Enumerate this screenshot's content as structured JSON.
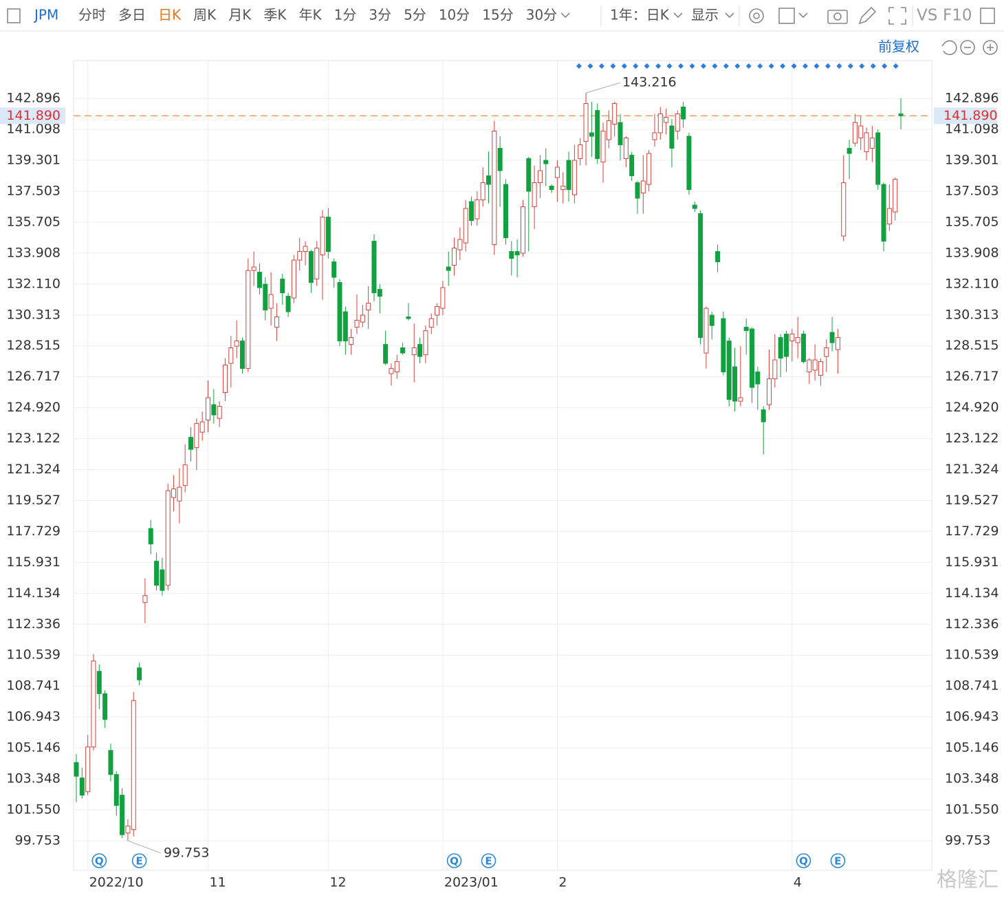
{
  "toolbar": {
    "symbol": "JPM",
    "periods": [
      "分时",
      "多日",
      "日K",
      "周K",
      "月K",
      "季K",
      "年K",
      "1分",
      "3分",
      "5分",
      "10分",
      "15分",
      "30分"
    ],
    "active": "日K",
    "range": "1年：日K",
    "display": "显示",
    "vs": "VS",
    "f10": "F10",
    "adjust": "前复权"
  },
  "watermark": "格隆汇",
  "chart_data": {
    "type": "candlestick",
    "up_color": "#d9413b",
    "down_color": "#12a140",
    "ylim": [
      98.03,
      145.1
    ],
    "yticks": [
      142.896,
      141.098,
      139.301,
      137.503,
      135.705,
      133.908,
      {
        "value": 132.11,
        "label": "132.110"
      },
      130.313,
      128.515,
      126.717,
      {
        "value": 124.92,
        "label": "124.920"
      },
      123.122,
      121.324,
      119.527,
      117.729,
      115.931,
      114.134,
      112.336,
      110.539,
      108.741,
      106.943,
      105.146,
      103.348,
      {
        "value": 101.55,
        "label": "101.550"
      },
      99.753
    ],
    "last_price": {
      "value": 141.89,
      "label": "141.890"
    },
    "max_label": 143.216,
    "min_label": 99.753,
    "grid": true,
    "categories": [
      null,
      null,
      "2022/10",
      null,
      null,
      null,
      null,
      null,
      null,
      null,
      null,
      null,
      null,
      null,
      null,
      null,
      null,
      null,
      null,
      null,
      null,
      null,
      null,
      "11",
      null,
      null,
      null,
      null,
      null,
      null,
      null,
      null,
      null,
      null,
      null,
      null,
      null,
      null,
      null,
      null,
      null,
      null,
      null,
      null,
      "12",
      null,
      null,
      null,
      null,
      null,
      null,
      null,
      null,
      null,
      null,
      null,
      null,
      null,
      null,
      null,
      null,
      null,
      null,
      null,
      "2023/01",
      null,
      null,
      null,
      null,
      null,
      null,
      null,
      null,
      null,
      null,
      null,
      null,
      null,
      null,
      null,
      null,
      null,
      null,
      null,
      "2",
      null,
      null,
      null,
      null,
      null,
      null,
      null,
      null,
      null,
      null,
      null,
      null,
      null,
      null,
      null,
      null,
      null,
      null,
      null,
      null,
      null,
      null,
      null,
      null,
      null,
      null,
      null,
      null,
      null,
      null,
      null,
      null,
      null,
      null,
      null,
      null,
      null,
      null,
      null,
      null,
      "4",
      null,
      null,
      null,
      null,
      null,
      null,
      null,
      null,
      null,
      null,
      null,
      null,
      null,
      null,
      null,
      null,
      null,
      null,
      null
    ],
    "events": [
      {
        "index": 4,
        "label": "Q"
      },
      {
        "index": 11,
        "label": "E"
      },
      {
        "index": 66,
        "label": "Q"
      },
      {
        "index": 72,
        "label": "E"
      },
      {
        "index": 127,
        "label": "Q"
      },
      {
        "index": 133,
        "label": "E"
      }
    ],
    "candles": [
      [
        104.3,
        104.8,
        102.0,
        103.5
      ],
      [
        103.4,
        104.0,
        102.2,
        102.4
      ],
      [
        102.6,
        105.9,
        102.4,
        105.2
      ],
      [
        105.2,
        110.6,
        105.0,
        110.2
      ],
      [
        109.6,
        110.0,
        107.4,
        108.3
      ],
      [
        108.3,
        108.5,
        106.3,
        106.8
      ],
      [
        105.0,
        105.4,
        103.2,
        103.6
      ],
      [
        103.6,
        103.8,
        101.2,
        101.8
      ],
      [
        102.4,
        102.8,
        99.9,
        100.1
      ],
      [
        100.2,
        101.0,
        99.753,
        100.6
      ],
      [
        100.4,
        108.4,
        100.0,
        107.9
      ],
      [
        109.8,
        110.1,
        108.8,
        109.1
      ],
      [
        113.6,
        115.0,
        112.4,
        114.0
      ],
      [
        117.9,
        118.4,
        116.4,
        117.0
      ],
      [
        116.0,
        116.5,
        114.3,
        114.6
      ],
      [
        115.5,
        116.2,
        114.0,
        114.3
      ],
      [
        114.6,
        120.5,
        114.3,
        120.1
      ],
      [
        119.7,
        121.0,
        118.9,
        120.2
      ],
      [
        119.5,
        121.4,
        118.2,
        120.3
      ],
      [
        120.4,
        122.8,
        120.0,
        121.6
      ],
      [
        123.2,
        123.8,
        121.8,
        122.5
      ],
      [
        122.6,
        124.3,
        121.3,
        124.0
      ],
      [
        123.5,
        124.7,
        123.0,
        124.1
      ],
      [
        124.2,
        126.5,
        123.5,
        125.5
      ],
      [
        125.1,
        126.0,
        124.0,
        124.5
      ],
      [
        124.3,
        125.3,
        123.8,
        125.0
      ],
      [
        125.8,
        127.8,
        125.3,
        127.4
      ],
      [
        127.5,
        129.1,
        126.1,
        128.4
      ],
      [
        128.5,
        130.0,
        127.8,
        128.8
      ],
      [
        128.8,
        129.0,
        126.9,
        127.2
      ],
      [
        127.2,
        133.6,
        127.0,
        132.9
      ],
      [
        132.9,
        134.0,
        132.0,
        133.1
      ],
      [
        132.8,
        133.3,
        131.5,
        131.9
      ],
      [
        132.1,
        132.5,
        130.0,
        130.6
      ],
      [
        130.7,
        132.8,
        129.7,
        131.5
      ],
      [
        129.6,
        131.0,
        128.8,
        130.2
      ],
      [
        132.4,
        132.7,
        130.9,
        131.6
      ],
      [
        131.4,
        131.6,
        130.2,
        130.5
      ],
      [
        131.3,
        133.8,
        131.0,
        133.5
      ],
      [
        133.5,
        134.8,
        132.9,
        134.0
      ],
      [
        134.0,
        134.6,
        133.2,
        134.3
      ],
      [
        134.0,
        134.1,
        131.6,
        132.2
      ],
      [
        132.4,
        134.6,
        132.0,
        134.2
      ],
      [
        133.8,
        136.4,
        131.2,
        136.0
      ],
      [
        136.0,
        136.5,
        133.6,
        134.0
      ],
      [
        133.4,
        133.6,
        131.9,
        132.5
      ],
      [
        132.2,
        132.4,
        128.5,
        128.8
      ],
      [
        130.5,
        130.8,
        128.0,
        128.8
      ],
      [
        128.6,
        129.5,
        128.0,
        129.0
      ],
      [
        129.6,
        131.5,
        129.2,
        130.0
      ],
      [
        129.9,
        130.9,
        129.6,
        130.3
      ],
      [
        130.6,
        132.0,
        129.5,
        131.0
      ],
      [
        134.6,
        135.0,
        131.1,
        131.6
      ],
      [
        131.8,
        132.1,
        130.4,
        131.4
      ],
      [
        128.6,
        129.4,
        127.4,
        127.5
      ],
      [
        126.9,
        127.5,
        126.2,
        127.2
      ],
      [
        127.0,
        128.0,
        126.6,
        127.6
      ],
      [
        128.4,
        128.7,
        128.0,
        128.1
      ],
      [
        130.2,
        131.0,
        130.0,
        130.1
      ],
      [
        128.0,
        129.8,
        126.4,
        128.4
      ],
      [
        128.6,
        129.0,
        127.5,
        127.9
      ],
      [
        128.0,
        129.7,
        127.5,
        129.4
      ],
      [
        129.6,
        130.4,
        129.2,
        130.1
      ],
      [
        130.3,
        131.0,
        129.7,
        130.8
      ],
      [
        130.7,
        132.3,
        130.3,
        131.9
      ],
      [
        133.1,
        134.0,
        132.0,
        132.9
      ],
      [
        133.2,
        134.8,
        132.6,
        134.2
      ],
      [
        134.1,
        135.4,
        133.5,
        134.7
      ],
      [
        134.5,
        137.0,
        134.0,
        136.5
      ],
      [
        136.9,
        137.2,
        135.5,
        135.8
      ],
      [
        135.9,
        137.5,
        135.5,
        137.0
      ],
      [
        137.0,
        138.9,
        136.6,
        138.0
      ],
      [
        138.4,
        139.8,
        136.8,
        137.9
      ],
      [
        134.4,
        141.6,
        133.8,
        141.0
      ],
      [
        140.0,
        140.7,
        136.6,
        138.7
      ],
      [
        137.9,
        138.2,
        134.4,
        134.8
      ],
      [
        134.0,
        134.6,
        132.6,
        133.6
      ],
      [
        134.0,
        134.7,
        132.5,
        133.8
      ],
      [
        133.9,
        137.0,
        133.7,
        136.6
      ],
      [
        139.4,
        139.5,
        134.0,
        137.5
      ],
      [
        136.6,
        139.0,
        135.3,
        138.0
      ],
      [
        138.0,
        139.6,
        137.1,
        138.7
      ],
      [
        139.3,
        140.0,
        137.8,
        139.1
      ],
      [
        137.8,
        137.9,
        137.4,
        137.6
      ],
      [
        138.3,
        139.3,
        136.9,
        138.9
      ],
      [
        137.6,
        138.6,
        136.8,
        137.8
      ],
      [
        139.3,
        139.8,
        136.9,
        137.6
      ],
      [
        137.3,
        140.2,
        136.8,
        139.3
      ],
      [
        139.4,
        140.6,
        139.0,
        140.2
      ],
      [
        140.4,
        143.216,
        139.0,
        142.6
      ],
      [
        140.9,
        142.7,
        139.5,
        140.7
      ],
      [
        142.2,
        142.6,
        139.1,
        139.4
      ],
      [
        139.2,
        141.5,
        138.0,
        141.0
      ],
      [
        140.5,
        142.2,
        140.0,
        141.6
      ],
      [
        141.4,
        142.7,
        140.7,
        142.6
      ],
      [
        141.5,
        142.0,
        139.3,
        140.2
      ],
      [
        139.4,
        140.7,
        138.9,
        140.6
      ],
      [
        139.6,
        139.8,
        138.1,
        138.4
      ],
      [
        138.0,
        138.1,
        136.2,
        137.1
      ],
      [
        137.4,
        139.6,
        136.2,
        138.1
      ],
      [
        137.9,
        139.9,
        137.5,
        139.7
      ],
      [
        140.5,
        142.0,
        140.1,
        140.9
      ],
      [
        140.9,
        142.4,
        140.5,
        142.0
      ],
      [
        141.5,
        142.3,
        140.8,
        141.8
      ],
      [
        141.3,
        141.7,
        138.9,
        140.0
      ],
      [
        141.0,
        142.2,
        140.5,
        142.0
      ],
      [
        142.4,
        142.7,
        141.2,
        141.7
      ],
      [
        140.7,
        140.9,
        137.3,
        137.6
      ],
      [
        136.7,
        136.9,
        136.3,
        136.5
      ],
      [
        136.2,
        136.4,
        128.6,
        129.0
      ],
      [
        128.1,
        130.8,
        127.2,
        130.7
      ],
      [
        130.3,
        130.5,
        128.9,
        129.7
      ],
      [
        134.0,
        134.4,
        132.8,
        133.4
      ],
      [
        130.1,
        130.5,
        126.8,
        127.0
      ],
      [
        128.8,
        129.0,
        125.0,
        125.4
      ],
      [
        127.3,
        128.4,
        124.7,
        125.3
      ],
      [
        125.3,
        128.5,
        125.0,
        125.5
      ],
      [
        129.6,
        130.1,
        128.0,
        129.4
      ],
      [
        129.5,
        129.6,
        125.2,
        126.1
      ],
      [
        127.0,
        127.3,
        124.8,
        126.3
      ],
      [
        124.8,
        125.0,
        122.2,
        124.1
      ],
      [
        125.1,
        128.3,
        124.8,
        126.6
      ],
      [
        126.6,
        129.2,
        126.1,
        127.7
      ],
      [
        129.0,
        129.2,
        126.7,
        127.8
      ],
      [
        129.2,
        129.4,
        127.0,
        127.9
      ],
      [
        128.8,
        129.5,
        127.6,
        129.2
      ],
      [
        128.7,
        130.2,
        127.8,
        129.0
      ],
      [
        129.2,
        129.4,
        127.5,
        127.6
      ],
      [
        127.0,
        127.8,
        126.3,
        127.7
      ],
      [
        127.1,
        128.6,
        126.5,
        127.7
      ],
      [
        126.8,
        127.8,
        126.2,
        127.6
      ],
      [
        127.9,
        128.9,
        127.0,
        128.4
      ],
      [
        129.3,
        130.2,
        128.2,
        128.7
      ],
      [
        128.3,
        129.5,
        126.9,
        129.0
      ],
      [
        134.9,
        139.6,
        134.6,
        138.0
      ],
      [
        140.0,
        140.5,
        138.2,
        139.7
      ],
      [
        140.3,
        142.0,
        140.1,
        141.5
      ],
      [
        140.6,
        141.9,
        139.9,
        141.3
      ],
      [
        139.8,
        141.2,
        139.3,
        140.9
      ],
      [
        140.0,
        141.3,
        139.2,
        140.6
      ],
      [
        140.9,
        141.1,
        137.6,
        137.9
      ],
      [
        137.9,
        138.0,
        134.0,
        134.6
      ],
      [
        135.6,
        137.9,
        135.2,
        136.5
      ],
      [
        136.3,
        138.3,
        135.8,
        138.2
      ],
      [
        142.0,
        142.9,
        141.1,
        141.89
      ]
    ]
  }
}
